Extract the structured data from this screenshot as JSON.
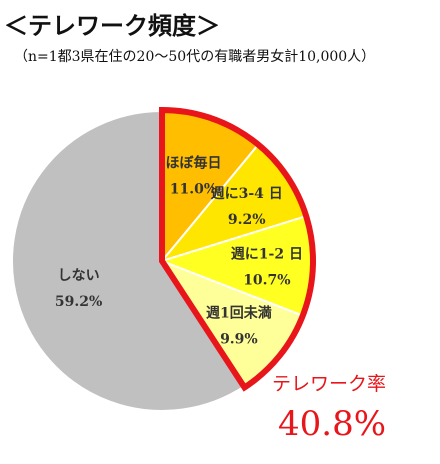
{
  "chart_data": {
    "type": "pie",
    "title": "＜テレワーク頻度＞",
    "subtitle": "（n=1都3県在住の20～50代の有職者男女計10,000人）",
    "slices": [
      {
        "label": "ほぼ毎日",
        "value_label": "11.0%",
        "value": 11.0,
        "color": "#ffbf00"
      },
      {
        "label": "週に3-4 日",
        "value_label": "9.2%",
        "value": 9.2,
        "color": "#ffe600"
      },
      {
        "label": "週に1-2 日",
        "value_label": "10.7%",
        "value": 10.7,
        "color": "#ffff22"
      },
      {
        "label": "週1回未満",
        "value_label": "9.9%",
        "value": 9.9,
        "color": "#ffff99"
      },
      {
        "label": "しない",
        "value_label": "59.2%",
        "value": 59.2,
        "color": "#c0c0c0"
      }
    ],
    "highlight": {
      "label": "テレワーク率",
      "value_label": "40.8%",
      "color": "#e8161b"
    }
  }
}
